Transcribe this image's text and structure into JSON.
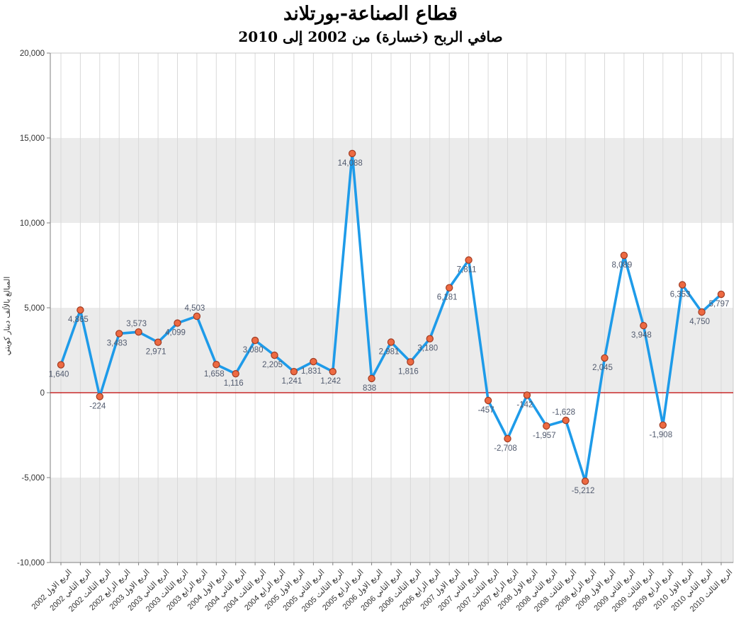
{
  "header": {
    "title": "قطاع الصناعة-بورتلاند",
    "subtitle": "صافي الربح (خسارة) من 2002 إلى 2010"
  },
  "chart_data": {
    "type": "line",
    "title": "قطاع الصناعة-بورتلاند",
    "subtitle": "صافي الربح (خسارة) من 2002 إلى 2010",
    "xlabel": "",
    "ylabel": "المبالغ بالألف دينار كويتي",
    "ylim": [
      -10000,
      20000
    ],
    "ytick_step": 5000,
    "ytick_labels": [
      "20,000",
      "15,000",
      "10,000",
      "5,000",
      "0",
      "-5,000",
      "-10,000"
    ],
    "legend": "none",
    "grid": {
      "vertical_gridlines": true,
      "horizontal_gridlines": false,
      "alternating_bands": true
    },
    "zero_line": true,
    "categories": [
      "الربع الاول 2002",
      "الربع الثاني 2002",
      "الربع الثالث 2002",
      "الربع الرابع 2002",
      "الربع الاول 2003",
      "الربع الثاني 2003",
      "الربع الثالث 2003",
      "الربع الرابع 2003",
      "الربع الاول 2004",
      "الربع الثاني 2004",
      "الربع الثالث 2004",
      "الربع الرابع 2004",
      "الربع الاول 2005",
      "الربع الثاني 2005",
      "الربع الثالث 2005",
      "الربع الرابع 2005",
      "الربع الاول 2006",
      "الربع الثاني 2006",
      "الربع الثالث 2006",
      "الربع الرابع 2006",
      "الربع الاول 2007",
      "الربع الثاني 2007",
      "الربع الثالث 2007",
      "الربع الرابع 2007",
      "الربع الاول 2008",
      "الربع الثاني 2008",
      "الربع الثالث 2008",
      "الربع الرابع 2008",
      "الربع الاول 2009",
      "الربع الثاني 2009",
      "الربع الثالث 2009",
      "الربع الرابع 2009",
      "الربع الاول 2010",
      "الربع الثاني 2010",
      "الربع الثالث 2010"
    ],
    "values": [
      1640,
      4865,
      -224,
      3483,
      3573,
      2971,
      4099,
      4503,
      1658,
      1116,
      3080,
      2205,
      1241,
      1831,
      1242,
      14088,
      838,
      2981,
      1816,
      3180,
      6181,
      7811,
      -457,
      -2708,
      -142,
      -1957,
      -1628,
      -5212,
      2045,
      8089,
      3948,
      -1908,
      6353,
      4750,
      5797
    ],
    "point_labels": [
      "1,640",
      "4,865",
      "-224",
      "3,483",
      "3,573",
      "2,971",
      "4,099",
      "4,503",
      "1,658",
      "1,116",
      "3,080",
      "2,205",
      "1,241",
      "1,831",
      "1,242",
      "14,088",
      "838",
      "2,981",
      "1,816",
      "3,180",
      "6,181",
      "7,811",
      "-457",
      "-2,708",
      "-142",
      "-1,957",
      "-1,628",
      "-5,212",
      "2,045",
      "8,089",
      "3,948",
      "-1,908",
      "6,353",
      "4,750",
      "5,797"
    ],
    "label_above_indices": [
      4,
      7,
      26
    ],
    "colors": {
      "line": "#1e9be9",
      "marker_fill": "#ed6a42",
      "marker_stroke": "#a03b22",
      "zero_line": "#c00000",
      "band_gray": "#ebebeb",
      "gridline": "#d9d9d9",
      "plot_border": "#c9c9c9",
      "axis_line": "#7f7f7f",
      "data_label": "#515a6e",
      "tick_label": "#333333"
    }
  }
}
